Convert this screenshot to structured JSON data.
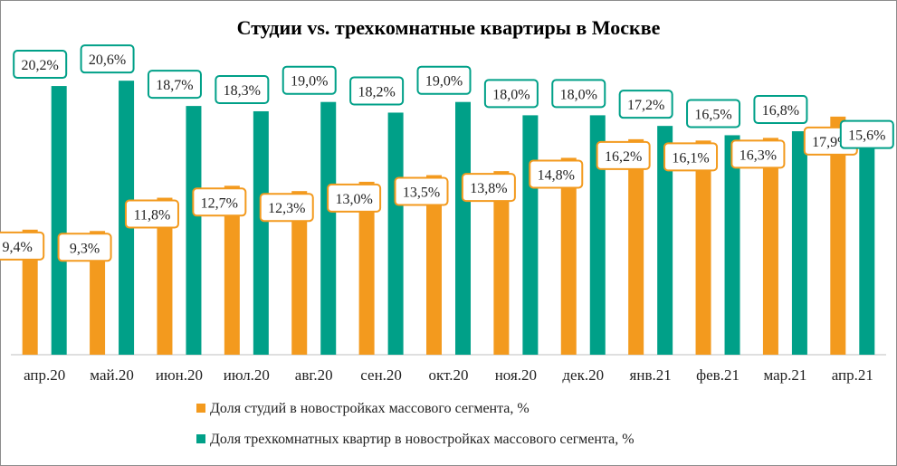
{
  "chart_data": {
    "type": "bar",
    "title": "Студии vs. трехкомнатные квартиры в Москве",
    "categories": [
      "апр.20",
      "май.20",
      "июн.20",
      "июл.20",
      "авг.20",
      "сен.20",
      "окт.20",
      "ноя.20",
      "дек.20",
      "янв.21",
      "фев.21",
      "мар.21",
      "апр.21"
    ],
    "series": [
      {
        "name": "Доля студий в новостройках массового сегмента, %",
        "color": "#F39A1E",
        "values": [
          9.4,
          9.3,
          11.8,
          12.7,
          12.3,
          13.0,
          13.5,
          13.8,
          14.8,
          16.2,
          16.1,
          16.3,
          17.9
        ],
        "labels": [
          "9,4%",
          "9,3%",
          "11,8%",
          "12,7%",
          "12,3%",
          "13,0%",
          "13,5%",
          "13,8%",
          "14,8%",
          "16,2%",
          "16,1%",
          "16,3%",
          "17,9%"
        ]
      },
      {
        "name": "Доля трехкомнатных квартир в новостройках массового сегмента, %",
        "color": "#00A088",
        "values": [
          20.2,
          20.6,
          18.7,
          18.3,
          19.0,
          18.2,
          19.0,
          18.0,
          18.0,
          17.2,
          16.5,
          16.8,
          15.6
        ],
        "labels": [
          "20,2%",
          "20,6%",
          "18,7%",
          "18,3%",
          "19,0%",
          "18,2%",
          "19,0%",
          "18,0%",
          "18,0%",
          "17,2%",
          "16,5%",
          "16,8%",
          "15,6%"
        ]
      }
    ],
    "ylim": [
      0,
      22
    ],
    "grid": false,
    "legend_position": "bottom"
  }
}
